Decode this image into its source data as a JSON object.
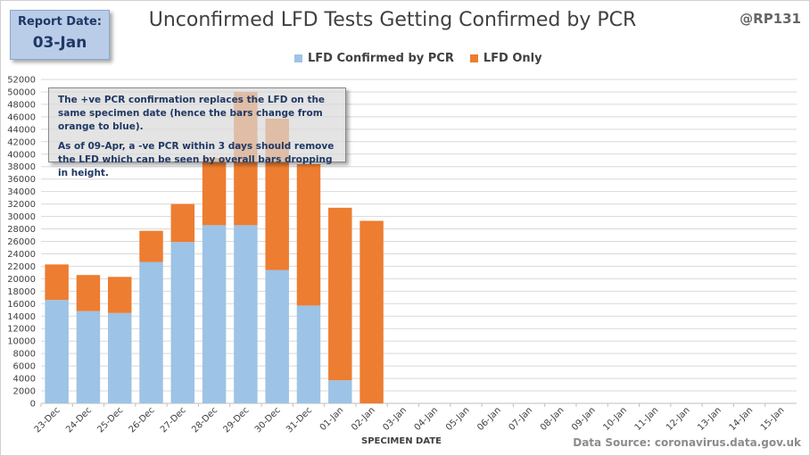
{
  "report": {
    "label": "Report Date:",
    "date": "03-Jan"
  },
  "title": "Unconfirmed LFD Tests Getting Confirmed by PCR",
  "handle": "@RP131",
  "annotation": {
    "line1": "The +ve PCR confirmation replaces the LFD on the same specimen date (hence the bars change from orange to blue).",
    "line2": "As of 09-Apr, a -ve PCR within 3 days should remove the LFD which can be seen by overall bars dropping  in height."
  },
  "source": "Data Source: coronavirus.data.gov.uk",
  "colors": {
    "confirmed": "#9dc3e6",
    "lfd_only": "#ed7d31",
    "grid": "#d9d9d9"
  },
  "chart_data": {
    "type": "bar",
    "stacked": true,
    "xlabel": "SPECIMEN DATE",
    "ylabel": "",
    "ylim": [
      0,
      52000
    ],
    "ytick_step": 2000,
    "grid": true,
    "legend_position": "top",
    "categories": [
      "23-Dec",
      "24-Dec",
      "25-Dec",
      "26-Dec",
      "27-Dec",
      "28-Dec",
      "29-Dec",
      "30-Dec",
      "31-Dec",
      "01-Jan",
      "02-Jan",
      "03-Jan",
      "04-Jan",
      "05-Jan",
      "06-Jan",
      "07-Jan",
      "08-Jan",
      "09-Jan",
      "10-Jan",
      "11-Jan",
      "12-Jan",
      "13-Jan",
      "14-Jan",
      "15-Jan"
    ],
    "series": [
      {
        "name": "LFD Confirmed by PCR",
        "values": [
          16600,
          14800,
          14500,
          22700,
          25900,
          28600,
          28600,
          21400,
          15700,
          3700,
          0,
          0,
          0,
          0,
          0,
          0,
          0,
          0,
          0,
          0,
          0,
          0,
          0,
          0
        ]
      },
      {
        "name": "LFD Only",
        "values": [
          5700,
          5800,
          5800,
          5000,
          6100,
          10800,
          21400,
          24300,
          22700,
          27700,
          29300,
          0,
          0,
          0,
          0,
          0,
          0,
          0,
          0,
          0,
          0,
          0,
          0,
          0
        ]
      }
    ]
  }
}
